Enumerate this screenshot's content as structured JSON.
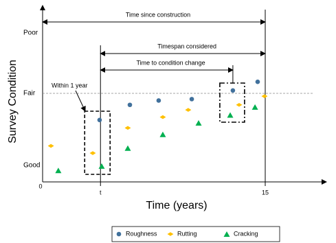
{
  "chart_data": {
    "type": "scatter",
    "x_label": "Time (years)",
    "y_label": "Survey Condition",
    "xlim": [
      0,
      19.12
    ],
    "ylim": [
      0.77,
      3.22
    ],
    "xticks": [
      0,
      {
        "value": 3.9,
        "label": "t"
      },
      15
    ],
    "yticks": [
      {
        "value": 1,
        "label": "Good"
      },
      {
        "value": 2,
        "label": "Fair"
      },
      {
        "value": 2.84,
        "label": "Poor"
      }
    ],
    "annotations": [
      "Time since construction",
      "Timespan considered",
      "Time to condition change",
      "Within 1 year"
    ],
    "series": [
      {
        "name": "Roughness",
        "color": "#41719c",
        "marker": "circle",
        "x": [
          3.84,
          5.88,
          7.82,
          10.05,
          12.82,
          14.49
        ],
        "values": [
          1.63,
          1.84,
          1.9,
          1.92,
          2.04,
          2.16
        ]
      },
      {
        "name": "Rutting",
        "color": "#ffc000",
        "marker": "diamond",
        "x": [
          0.56,
          3.38,
          5.74,
          8.1,
          9.81,
          13.24,
          14.95
        ],
        "values": [
          1.27,
          1.17,
          1.52,
          1.67,
          1.77,
          1.84,
          1.96
        ]
      },
      {
        "name": "Cracking",
        "color": "#00b050",
        "marker": "triangle",
        "x": [
          1.06,
          3.98,
          5.74,
          8.1,
          10.51,
          12.64,
          14.31
        ],
        "values": [
          0.93,
          0.99,
          1.24,
          1.43,
          1.59,
          1.7,
          1.81
        ]
      }
    ]
  }
}
